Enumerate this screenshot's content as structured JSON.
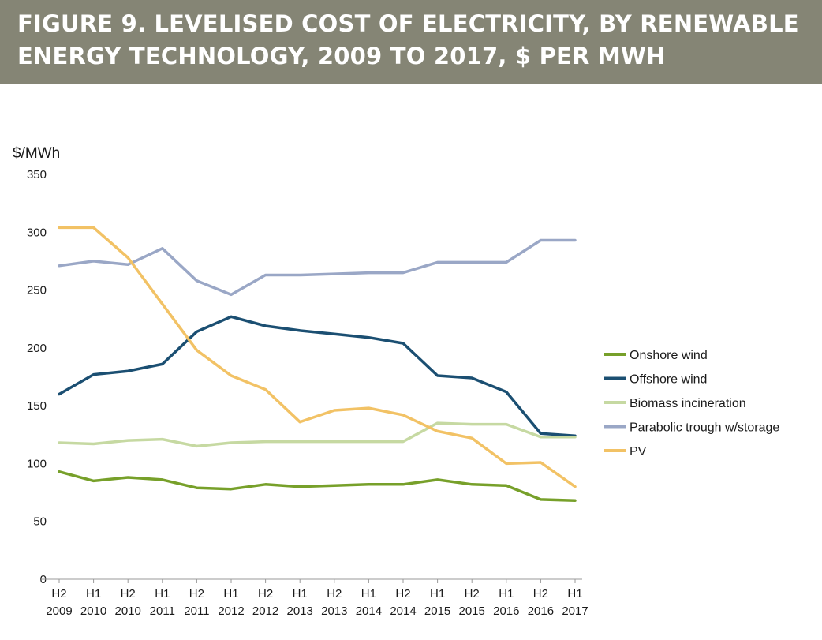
{
  "header": {
    "title_line1": "FIGURE 9. LEVELISED COST OF ELECTRICITY, BY RENEWABLE",
    "title_line2": "ENERGY TECHNOLOGY, 2009 TO 2017, $ PER MWH"
  },
  "chart_data": {
    "type": "line",
    "title": "FIGURE 9. LEVELISED COST OF ELECTRICITY, BY RENEWABLE ENERGY TECHNOLOGY, 2009 TO 2017, $ PER MWH",
    "ylabel": "$/MWh",
    "xlabel": "",
    "ylim": [
      0,
      350
    ],
    "yticks": [
      0,
      50,
      100,
      150,
      200,
      250,
      300,
      350
    ],
    "categories": [
      [
        "H2",
        "2009"
      ],
      [
        "H1",
        "2010"
      ],
      [
        "H2",
        "2010"
      ],
      [
        "H1",
        "2011"
      ],
      [
        "H2",
        "2011"
      ],
      [
        "H1",
        "2012"
      ],
      [
        "H2",
        "2012"
      ],
      [
        "H1",
        "2013"
      ],
      [
        "H2",
        "2013"
      ],
      [
        "H1",
        "2014"
      ],
      [
        "H2",
        "2014"
      ],
      [
        "H1",
        "2015"
      ],
      [
        "H2",
        "2015"
      ],
      [
        "H1",
        "2016"
      ],
      [
        "H2",
        "2016"
      ],
      [
        "H1",
        "2017"
      ]
    ],
    "grid": false,
    "legend_position": "right",
    "series": [
      {
        "name": "Onshore wind",
        "color": "#77a02a",
        "values": [
          93,
          85,
          88,
          86,
          79,
          78,
          82,
          80,
          81,
          82,
          82,
          86,
          82,
          81,
          69,
          68
        ]
      },
      {
        "name": "Offshore wind",
        "color": "#1b4f72",
        "values": [
          160,
          177,
          180,
          186,
          214,
          227,
          219,
          215,
          212,
          209,
          204,
          176,
          174,
          162,
          126,
          124
        ]
      },
      {
        "name": "Biomass incineration",
        "color": "#c6d9a2",
        "values": [
          118,
          117,
          120,
          121,
          115,
          118,
          119,
          119,
          119,
          119,
          119,
          135,
          134,
          134,
          123,
          123
        ]
      },
      {
        "name": "Parabolic trough w/storage",
        "color": "#9aa7c6",
        "values": [
          271,
          275,
          272,
          286,
          258,
          246,
          263,
          263,
          264,
          265,
          265,
          274,
          274,
          274,
          293,
          293
        ]
      },
      {
        "name": "PV",
        "color": "#f2c265",
        "values": [
          304,
          304,
          278,
          238,
          198,
          176,
          164,
          136,
          146,
          148,
          142,
          128,
          122,
          100,
          101,
          80
        ]
      }
    ]
  }
}
